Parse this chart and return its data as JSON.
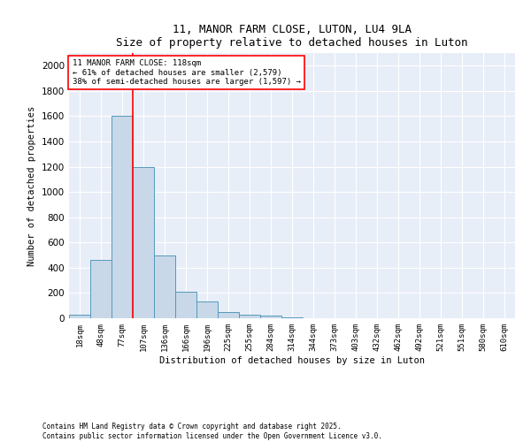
{
  "title": "11, MANOR FARM CLOSE, LUTON, LU4 9LA",
  "subtitle": "Size of property relative to detached houses in Luton",
  "xlabel": "Distribution of detached houses by size in Luton",
  "ylabel": "Number of detached properties",
  "bins": [
    "18sqm",
    "48sqm",
    "77sqm",
    "107sqm",
    "136sqm",
    "166sqm",
    "196sqm",
    "225sqm",
    "255sqm",
    "284sqm",
    "314sqm",
    "344sqm",
    "373sqm",
    "403sqm",
    "432sqm",
    "462sqm",
    "492sqm",
    "521sqm",
    "551sqm",
    "580sqm",
    "610sqm"
  ],
  "values": [
    30,
    460,
    1600,
    1200,
    500,
    210,
    130,
    50,
    30,
    20,
    10,
    0,
    0,
    0,
    0,
    0,
    0,
    0,
    0,
    0,
    0
  ],
  "bar_color": "#c8d8e8",
  "bar_edge_color": "#5599bb",
  "vline_x_index": 3,
  "vline_color": "red",
  "annotation_text": "11 MANOR FARM CLOSE: 118sqm\n← 61% of detached houses are smaller (2,579)\n38% of semi-detached houses are larger (1,597) →",
  "annotation_box_color": "white",
  "annotation_box_edge": "red",
  "ylim": [
    0,
    2100
  ],
  "yticks": [
    0,
    200,
    400,
    600,
    800,
    1000,
    1200,
    1400,
    1600,
    1800,
    2000
  ],
  "bg_color": "#e8eef8",
  "footer1": "Contains HM Land Registry data © Crown copyright and database right 2025.",
  "footer2": "Contains public sector information licensed under the Open Government Licence v3.0."
}
